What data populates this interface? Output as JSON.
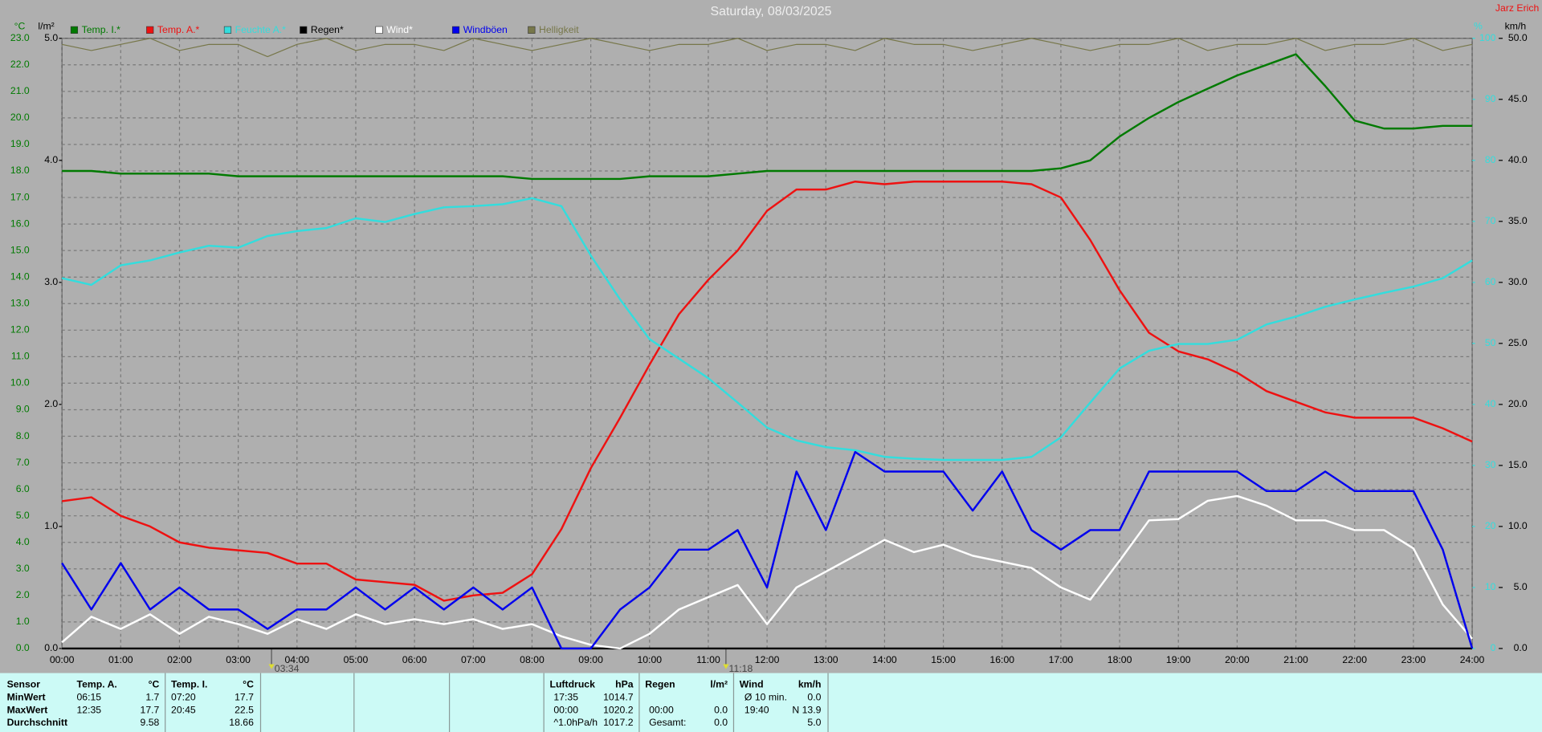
{
  "chart_data": {
    "type": "line",
    "title": "Saturday, 08/03/2025",
    "station": "Jarz Erich",
    "y_label": "°C",
    "rain_label": "l/m²",
    "humidity_label": "%",
    "y2_label": "km/h",
    "grid": true,
    "x": [
      0,
      0.5,
      1,
      1.5,
      2,
      2.5,
      3,
      3.5,
      4,
      4.5,
      5,
      5.5,
      6,
      6.5,
      7,
      7.5,
      8,
      8.5,
      9,
      9.5,
      10,
      10.5,
      11,
      11.5,
      12,
      12.5,
      13,
      13.5,
      14,
      14.5,
      15,
      15.5,
      16,
      16.5,
      17,
      17.5,
      18,
      18.5,
      19,
      19.5,
      20,
      20.5,
      21,
      21.5,
      22,
      22.5,
      23,
      23.5,
      24
    ],
    "xlim": [
      0,
      24
    ],
    "xticks": [
      {
        "value": 0,
        "label": "00:00"
      },
      {
        "value": 1,
        "label": "01:00"
      },
      {
        "value": 2,
        "label": "02:00"
      },
      {
        "value": 3,
        "label": "03:00"
      },
      {
        "value": 4,
        "label": "04:00"
      },
      {
        "value": 5,
        "label": "05:00"
      },
      {
        "value": 6,
        "label": "06:00"
      },
      {
        "value": 7,
        "label": "07:00"
      },
      {
        "value": 8,
        "label": "08:00"
      },
      {
        "value": 9,
        "label": "09:00"
      },
      {
        "value": 10,
        "label": "10:00"
      },
      {
        "value": 11,
        "label": "11:00"
      },
      {
        "value": 12,
        "label": "12:00"
      },
      {
        "value": 13,
        "label": "13:00"
      },
      {
        "value": 14,
        "label": "14:00"
      },
      {
        "value": 15,
        "label": "15:00"
      },
      {
        "value": 16,
        "label": "16:00"
      },
      {
        "value": 17,
        "label": "17:00"
      },
      {
        "value": 18,
        "label": "18:00"
      },
      {
        "value": 19,
        "label": "19:00"
      },
      {
        "value": 20,
        "label": "20:00"
      },
      {
        "value": 21,
        "label": "21:00"
      },
      {
        "value": 22,
        "label": "22:00"
      },
      {
        "value": 23,
        "label": "23:00"
      },
      {
        "value": 24,
        "label": "24:00"
      }
    ],
    "ylim": [
      0,
      23
    ],
    "yticks": [
      {
        "value": 0,
        "label": "0.0"
      },
      {
        "value": 1,
        "label": "1.0"
      },
      {
        "value": 2,
        "label": "2.0"
      },
      {
        "value": 3,
        "label": "3.0"
      },
      {
        "value": 4,
        "label": "4.0"
      },
      {
        "value": 5,
        "label": "5.0"
      },
      {
        "value": 6,
        "label": "6.0"
      },
      {
        "value": 7,
        "label": "7.0"
      },
      {
        "value": 8,
        "label": "8.0"
      },
      {
        "value": 9,
        "label": "9.0"
      },
      {
        "value": 10,
        "label": "10.0"
      },
      {
        "value": 11,
        "label": "11.0"
      },
      {
        "value": 12,
        "label": "12.0"
      },
      {
        "value": 13,
        "label": "13.0"
      },
      {
        "value": 14,
        "label": "14.0"
      },
      {
        "value": 15,
        "label": "15.0"
      },
      {
        "value": 16,
        "label": "16.0"
      },
      {
        "value": 17,
        "label": "17.0"
      },
      {
        "value": 18,
        "label": "18.0"
      },
      {
        "value": 19,
        "label": "19.0"
      },
      {
        "value": 20,
        "label": "20.0"
      },
      {
        "value": 21,
        "label": "21.0"
      },
      {
        "value": 22,
        "label": "22.0"
      },
      {
        "value": 23,
        "label": "23.0"
      }
    ],
    "rain_lim": [
      0,
      5
    ],
    "rain_ticks": [
      {
        "value": 0,
        "label": "0.0"
      },
      {
        "value": 1,
        "label": "1.0"
      },
      {
        "value": 2,
        "label": "2.0"
      },
      {
        "value": 3,
        "label": "3.0"
      },
      {
        "value": 4,
        "label": "4.0"
      },
      {
        "value": 5,
        "label": "5.0"
      }
    ],
    "humidity_lim": [
      0,
      100
    ],
    "humidity_ticks": [
      0,
      10,
      20,
      30,
      40,
      50,
      60,
      70,
      80,
      90,
      100
    ],
    "y2lim": [
      0,
      50
    ],
    "y2ticks": [
      {
        "value": 0,
        "label": "0.0"
      },
      {
        "value": 5,
        "label": "5.0"
      },
      {
        "value": 10,
        "label": "10.0"
      },
      {
        "value": 15,
        "label": "15.0"
      },
      {
        "value": 20,
        "label": "20.0"
      },
      {
        "value": 25,
        "label": "25.0"
      },
      {
        "value": 30,
        "label": "30.0"
      },
      {
        "value": 35,
        "label": "35.0"
      },
      {
        "value": 40,
        "label": "40.0"
      },
      {
        "value": 45,
        "label": "45.0"
      },
      {
        "value": 50,
        "label": "50.0"
      }
    ],
    "series": [
      {
        "name": "Temp. I.*",
        "color": "#007a00",
        "axis": "y",
        "values": [
          18.0,
          18.0,
          17.9,
          17.9,
          17.9,
          17.9,
          17.8,
          17.8,
          17.8,
          17.8,
          17.8,
          17.8,
          17.8,
          17.8,
          17.8,
          17.8,
          17.7,
          17.7,
          17.7,
          17.7,
          17.8,
          17.8,
          17.8,
          17.9,
          18.0,
          18.0,
          18.0,
          18.0,
          18.0,
          18.0,
          18.0,
          18.0,
          18.0,
          18.0,
          18.1,
          18.4,
          19.3,
          20.0,
          20.6,
          21.1,
          21.6,
          22.0,
          22.4,
          21.2,
          19.9,
          19.6,
          19.6,
          19.7,
          19.7
        ]
      },
      {
        "name": "Temp. A.*",
        "color": "#ee1111",
        "axis": "y",
        "values": [
          5.55,
          5.7,
          5.0,
          4.6,
          4.0,
          3.8,
          3.7,
          3.6,
          3.2,
          3.2,
          2.6,
          2.5,
          2.4,
          1.8,
          2.0,
          2.1,
          2.8,
          4.5,
          6.8,
          8.7,
          10.7,
          12.6,
          13.9,
          15.0,
          16.5,
          17.3,
          17.3,
          17.6,
          17.5,
          17.6,
          17.6,
          17.6,
          17.6,
          17.5,
          17.0,
          15.4,
          13.5,
          11.9,
          11.2,
          10.9,
          10.4,
          9.7,
          9.3,
          8.9,
          8.7,
          8.7,
          8.7,
          8.3,
          7.8
        ]
      },
      {
        "name": "Feuchte A.*",
        "color": "#33dddd",
        "axis": "humidity",
        "values": [
          60.7,
          59.6,
          62.8,
          63.6,
          64.9,
          66.0,
          65.7,
          67.6,
          68.4,
          68.9,
          70.5,
          69.9,
          71.2,
          72.3,
          72.5,
          72.8,
          73.8,
          72.5,
          64.4,
          57.2,
          50.7,
          47.5,
          44.3,
          40.3,
          36.2,
          34.1,
          33.0,
          32.5,
          31.4,
          31.1,
          30.9,
          30.9,
          30.9,
          31.4,
          34.6,
          40.3,
          45.9,
          48.8,
          49.9,
          49.9,
          50.6,
          53.1,
          54.4,
          56.0,
          57.2,
          58.3,
          59.3,
          60.7,
          63.6
        ]
      },
      {
        "name": "Regen*",
        "color": "#000000",
        "axis": "rain",
        "values": [
          0,
          0,
          0,
          0,
          0,
          0,
          0,
          0,
          0,
          0,
          0,
          0,
          0,
          0,
          0,
          0,
          0,
          0,
          0,
          0,
          0,
          0,
          0,
          0,
          0,
          0,
          0,
          0,
          0,
          0,
          0,
          0,
          0,
          0,
          0,
          0,
          0,
          0,
          0,
          0,
          0,
          0,
          0,
          0,
          0,
          0,
          0,
          0,
          0
        ]
      },
      {
        "name": "Wind*",
        "color": "#ffffff",
        "axis": "y2",
        "values": [
          0.5,
          2.6,
          1.6,
          2.8,
          1.2,
          2.6,
          2.0,
          1.2,
          2.4,
          1.6,
          2.8,
          2.0,
          2.4,
          2.0,
          2.4,
          1.6,
          2.0,
          1.0,
          0.3,
          0.0,
          1.2,
          3.2,
          4.2,
          5.2,
          2.0,
          5.0,
          6.3,
          7.6,
          8.9,
          7.9,
          8.5,
          7.6,
          7.1,
          6.6,
          5.0,
          4.0,
          7.2,
          10.5,
          10.6,
          12.1,
          12.5,
          11.7,
          10.5,
          10.5,
          9.7,
          9.7,
          8.2,
          3.6,
          0.8
        ]
      },
      {
        "name": "Windböen",
        "color": "#0000ee",
        "axis": "y2",
        "values": [
          7.0,
          3.2,
          7.0,
          3.2,
          5.0,
          3.2,
          3.2,
          1.6,
          3.2,
          3.2,
          5.0,
          3.2,
          5.0,
          3.2,
          5.0,
          3.2,
          5.0,
          0.0,
          0.0,
          3.2,
          5.0,
          8.1,
          8.1,
          9.7,
          5.0,
          14.5,
          9.7,
          16.1,
          14.5,
          14.5,
          14.5,
          11.3,
          14.5,
          9.7,
          8.1,
          9.7,
          9.7,
          14.5,
          14.5,
          14.5,
          14.5,
          12.9,
          12.9,
          14.5,
          12.9,
          12.9,
          12.9,
          8.1,
          0.0
        ]
      },
      {
        "name": "Helligkeit",
        "color": "#77774a",
        "axis": "humidity",
        "values": [
          99,
          98,
          99,
          100,
          98,
          99,
          99,
          97,
          99,
          100,
          98,
          99,
          99,
          98,
          100,
          99,
          98,
          99,
          100,
          99,
          98,
          99,
          99,
          100,
          98,
          99,
          99,
          98,
          100,
          99,
          99,
          98,
          99,
          100,
          99,
          98,
          99,
          99,
          100,
          98,
          99,
          99,
          100,
          98,
          99,
          99,
          100,
          98,
          99
        ]
      }
    ],
    "annotations": [
      {
        "value": 3.5667,
        "label": "03:34"
      },
      {
        "value": 11.3,
        "label": "11:18"
      }
    ]
  },
  "footer": {
    "left": {
      "header": [
        "Sensor",
        "Temp. A.",
        "°C",
        "Temp. I.",
        "°C"
      ],
      "rows": [
        [
          "MinWert",
          "06:15",
          "1.7",
          "07:20",
          "17.7"
        ],
        [
          "MaxWert",
          "12:35",
          "17.7",
          "20:45",
          "22.5"
        ],
        [
          "Durchschnitt",
          null,
          "9.58",
          null,
          "18.66"
        ]
      ]
    },
    "right": {
      "header": [
        "Luftdruck",
        "hPa",
        "Regen",
        "l/m²",
        "Wind",
        "km/h"
      ],
      "rows": [
        [
          "17:35",
          "1014.7",
          null,
          null,
          "Ø 10 min.",
          "0.0"
        ],
        [
          "00:00",
          "1020.2",
          "00:00",
          "0.0",
          "19:40",
          "N 13.9"
        ],
        [
          "^1.0hPa/h",
          "1017.2",
          "Gesamt:",
          "0.0",
          null,
          "5.0"
        ]
      ]
    }
  }
}
